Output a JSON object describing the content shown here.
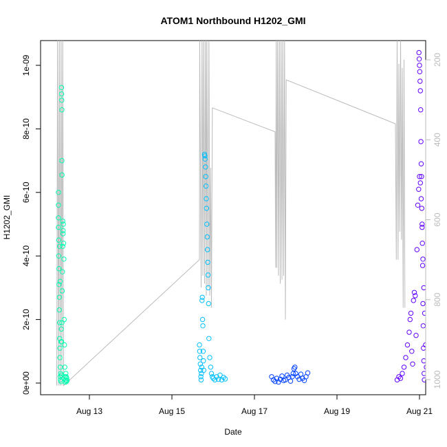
{
  "chart_data": {
    "type": "scatter",
    "title": "ATOM1 Northbound H1202_GMI",
    "xlabel": "Date",
    "ylabel": "H1202_GMI",
    "x_ticks": [
      "Aug 13",
      "Aug 15",
      "Aug 17",
      "Aug 19",
      "Aug 21"
    ],
    "y_ticks": [
      "0e+00",
      "2e-10",
      "4e-10",
      "6e-10",
      "8e-10",
      "1e-09"
    ],
    "y2_ticks": [
      "200",
      "400",
      "600",
      "800",
      "1000"
    ],
    "y2_reversed": true,
    "grid": false,
    "colors": {
      "flight1": "#00ffb0",
      "flight2": "#00bfff",
      "flight3": "#0040ff",
      "flight4": "#6000ff",
      "pressure_line": "#bbbbbb"
    },
    "series": [
      {
        "marker": "open-circle",
        "points": [
          [
            "Aug 12 06:00",
            6e-10
          ],
          [
            "Aug 12 06:00",
            5.6e-10
          ],
          [
            "Aug 12 06:00",
            5.2e-10
          ],
          [
            "Aug 12 06:00",
            4.9e-10
          ],
          [
            "Aug 12 06:10",
            4.5e-10
          ],
          [
            "Aug 12 06:10",
            4e-10
          ],
          [
            "Aug 12 06:20",
            3.6e-10
          ],
          [
            "Aug 12 06:20",
            3.1e-10
          ],
          [
            "Aug 12 06:30",
            2.7e-10
          ],
          [
            "Aug 12 06:30",
            2.3e-10
          ],
          [
            "Aug 12 06:40",
            1.9e-10
          ],
          [
            "Aug 12 06:40",
            1.4e-10
          ],
          [
            "Aug 12 06:50",
            1.1e-10
          ],
          [
            "Aug 12 06:50",
            8e-11
          ],
          [
            "Aug 12 07:00",
            5e-11
          ],
          [
            "Aug 12 07:00",
            2e-11
          ],
          [
            "Aug 12 07:10",
            1e-11
          ],
          [
            "Aug 12 07:20",
            3e-11
          ],
          [
            "Aug 12 07:30",
            5e-12
          ],
          [
            "Aug 12 07:40",
            2.5e-11
          ],
          [
            "Aug 12 07:50",
            1.3e-10
          ],
          [
            "Aug 12 08:00",
            1.9e-10
          ],
          [
            "Aug 12 08:10",
            2.9e-10
          ],
          [
            "Aug 12 08:20",
            3.5e-10
          ],
          [
            "Aug 12 08:30",
            4.3e-10
          ],
          [
            "Aug 12 08:40",
            4.7e-10
          ],
          [
            "Aug 12 08:50",
            5e-10
          ],
          [
            "Aug 12 09:00",
            4.4e-10
          ],
          [
            "Aug 12 09:10",
            3.9e-10
          ],
          [
            "Aug 12 09:20",
            2e-10
          ],
          [
            "Aug 12 09:30",
            1.2e-10
          ],
          [
            "Aug 12 09:40",
            5e-11
          ],
          [
            "Aug 12 09:50",
            2e-11
          ],
          [
            "Aug 12 10:00",
            3e-12
          ],
          [
            "Aug 12 10:10",
            1e-11
          ],
          [
            "Aug 12 10:20",
            3e-11
          ],
          [
            "Aug 12 10:30",
            2e-11
          ],
          [
            "Aug 12 10:40",
            5e-12
          ],
          [
            "Aug 12 10:50",
            1.5e-11
          ],
          [
            "Aug 12 11:00",
            8e-12
          ],
          [
            "Aug 12 06:40",
            4.3e-10
          ],
          [
            "Aug 12 07:00",
            3.2e-10
          ],
          [
            "Aug 12 07:30",
            1.3e-10
          ],
          [
            "Aug 12 07:40",
            1.7e-10
          ],
          [
            "Aug 12 07:45",
            9.3e-10
          ],
          [
            "Aug 12 07:50",
            9.1e-10
          ],
          [
            "Aug 12 07:55",
            8.9e-10
          ],
          [
            "Aug 12 08:00",
            8.6e-10
          ],
          [
            "Aug 12 08:00",
            7e-10
          ],
          [
            "Aug 12 08:05",
            6.55e-10
          ],
          [
            "Aug 12 08:30",
            5.1e-10
          ],
          [
            "Aug 12 08:40",
            4.8e-10
          ]
        ]
      },
      {
        "marker": "open-circle",
        "points": [
          [
            "Aug 15 16:00",
            1.2e-10
          ],
          [
            "Aug 15 16:10",
            1e-10
          ],
          [
            "Aug 15 16:20",
            8e-11
          ],
          [
            "Aug 15 16:30",
            6e-11
          ],
          [
            "Aug 15 16:40",
            4e-11
          ],
          [
            "Aug 15 16:50",
            2e-11
          ],
          [
            "Aug 15 17:00",
            1e-11
          ],
          [
            "Aug 15 17:10",
            3e-11
          ],
          [
            "Aug 15 17:20",
            5e-11
          ],
          [
            "Aug 15 17:30",
            2.6e-10
          ],
          [
            "Aug 15 17:40",
            2.7e-10
          ],
          [
            "Aug 15 17:50",
            2e-10
          ],
          [
            "Aug 15 18:00",
            1.8e-10
          ],
          [
            "Aug 15 18:10",
            1e-10
          ],
          [
            "Aug 15 18:20",
            7e-11
          ],
          [
            "Aug 15 18:30",
            4e-11
          ],
          [
            "Aug 15 19:00",
            7.2e-10
          ],
          [
            "Aug 15 19:10",
            7.15e-10
          ],
          [
            "Aug 15 19:20",
            7.05e-10
          ],
          [
            "Aug 15 19:30",
            6.8e-10
          ],
          [
            "Aug 15 19:40",
            6.5e-10
          ],
          [
            "Aug 15 19:50",
            6.2e-10
          ],
          [
            "Aug 15 20:00",
            5.8e-10
          ],
          [
            "Aug 15 20:10",
            5.5e-10
          ],
          [
            "Aug 15 20:20",
            5e-10
          ],
          [
            "Aug 15 20:30",
            4.6e-10
          ],
          [
            "Aug 15 20:40",
            4.2e-10
          ],
          [
            "Aug 15 20:50",
            3.8e-10
          ],
          [
            "Aug 15 21:00",
            3.4e-10
          ],
          [
            "Aug 15 21:10",
            3e-10
          ],
          [
            "Aug 15 21:20",
            2.5e-10
          ],
          [
            "Aug 15 21:30",
            1.4e-10
          ],
          [
            "Aug 15 22:00",
            8e-11
          ],
          [
            "Aug 15 22:30",
            5e-11
          ],
          [
            "Aug 15 23:00",
            3e-11
          ],
          [
            "Aug 15 23:30",
            2e-11
          ],
          [
            "Aug 16 00:00",
            1.5e-11
          ],
          [
            "Aug 16 01:00",
            1e-11
          ],
          [
            "Aug 16 02:00",
            2e-11
          ],
          [
            "Aug 16 03:00",
            1.2e-11
          ],
          [
            "Aug 16 04:00",
            2.5e-11
          ],
          [
            "Aug 16 05:00",
            1e-11
          ],
          [
            "Aug 16 06:00",
            1.8e-11
          ],
          [
            "Aug 16 07:00",
            1.3e-11
          ]
        ]
      },
      {
        "marker": "open-circle",
        "points": [
          [
            "Aug 17 10:00",
            2e-11
          ],
          [
            "Aug 17 11:00",
            1e-11
          ],
          [
            "Aug 17 12:00",
            5e-12
          ],
          [
            "Aug 17 13:00",
            1.5e-11
          ],
          [
            "Aug 17 14:00",
            3e-12
          ],
          [
            "Aug 17 15:00",
            1.2e-11
          ],
          [
            "Aug 17 16:00",
            2.2e-11
          ],
          [
            "Aug 17 17:00",
            8e-12
          ],
          [
            "Aug 17 18:00",
            1e-11
          ],
          [
            "Aug 17 19:00",
            2.5e-11
          ],
          [
            "Aug 17 20:00",
            1.8e-11
          ],
          [
            "Aug 17 21:00",
            6e-12
          ],
          [
            "Aug 17 22:00",
            2e-11
          ],
          [
            "Aug 17 22:30",
            3e-11
          ],
          [
            "Aug 17 23:00",
            4.5e-11
          ],
          [
            "Aug 17 23:30",
            5e-11
          ],
          [
            "Aug 18 00:00",
            3e-11
          ],
          [
            "Aug 18 01:00",
            2e-11
          ],
          [
            "Aug 18 02:00",
            1.2e-11
          ],
          [
            "Aug 18 03:00",
            2.8e-11
          ],
          [
            "Aug 18 04:00",
            1.5e-11
          ],
          [
            "Aug 18 05:00",
            8e-12
          ],
          [
            "Aug 18 06:00",
            2e-11
          ],
          [
            "Aug 18 07:00",
            3.2e-11
          ]
        ]
      },
      {
        "marker": "open-circle",
        "points": [
          [
            "Aug 20 11:00",
            1e-11
          ],
          [
            "Aug 20 12:00",
            2e-11
          ],
          [
            "Aug 20 13:00",
            1.5e-11
          ],
          [
            "Aug 20 14:00",
            3e-11
          ],
          [
            "Aug 20 15:00",
            5e-11
          ],
          [
            "Aug 20 16:00",
            8e-11
          ],
          [
            "Aug 20 17:00",
            1.2e-10
          ],
          [
            "Aug 20 18:00",
            1.6e-10
          ],
          [
            "Aug 20 18:30",
            2e-10
          ],
          [
            "Aug 20 19:00",
            2.2e-10
          ],
          [
            "Aug 20 19:30",
            1e-10
          ],
          [
            "Aug 20 20:00",
            6e-11
          ],
          [
            "Aug 20 20:30",
            2.6e-10
          ],
          [
            "Aug 20 21:00",
            2.85e-10
          ],
          [
            "Aug 20 21:30",
            2.75e-10
          ],
          [
            "Aug 20 22:00",
            1.5e-10
          ],
          [
            "Aug 20 22:30",
            4.2e-10
          ],
          [
            "Aug 20 23:00",
            5.6e-10
          ],
          [
            "Aug 20 23:30",
            6.1e-10
          ],
          [
            "Aug 21 00:00",
            6.5e-10
          ],
          [
            "Aug 21 00:30",
            6.3e-10
          ],
          [
            "Aug 21 01:00",
            5.8e-10
          ],
          [
            "Aug 21 01:30",
            4.9e-10
          ],
          [
            "Aug 21 02:00",
            3.9e-10
          ],
          [
            "Aug 21 02:30",
            3e-10
          ],
          [
            "Aug 21 03:00",
            2.2e-10
          ],
          [
            "Aug 21 03:30",
            1.2e-10
          ],
          [
            "Aug 21 04:00",
            5e-11
          ],
          [
            "Aug 20 23:40",
            1.04e-09
          ],
          [
            "Aug 20 23:50",
            1.02e-09
          ],
          [
            "Aug 21 00:00",
            1e-09
          ],
          [
            "Aug 21 00:10",
            9.8e-10
          ],
          [
            "Aug 21 00:20",
            9.5e-10
          ],
          [
            "Aug 21 00:30",
            9.2e-10
          ],
          [
            "Aug 21 00:40",
            8.6e-10
          ],
          [
            "Aug 21 00:50",
            7.6e-10
          ],
          [
            "Aug 21 01:00",
            6.9e-10
          ],
          [
            "Aug 21 01:10",
            6.5e-10
          ],
          [
            "Aug 21 01:20",
            5.5e-10
          ],
          [
            "Aug 21 01:30",
            5e-10
          ],
          [
            "Aug 21 01:40",
            4.4e-10
          ],
          [
            "Aug 21 01:50",
            3.7e-10
          ],
          [
            "Aug 21 02:00",
            2.5e-10
          ],
          [
            "Aug 21 02:10",
            1.8e-10
          ],
          [
            "Aug 21 02:20",
            1.1e-10
          ],
          [
            "Aug 21 02:30",
            7e-11
          ],
          [
            "Aug 21 02:40",
            3e-11
          ],
          [
            "Aug 21 02:50",
            1e-11
          ]
        ]
      }
    ],
    "pressure_path": [
      [
        "Aug 12 05:00",
        1015
      ],
      [
        "Aug 12 05:30",
        130
      ],
      [
        "Aug 12 06:00",
        1015
      ],
      [
        "Aug 12 06:30",
        130
      ],
      [
        "Aug 12 07:00",
        1015
      ],
      [
        "Aug 12 07:30",
        130
      ],
      [
        "Aug 12 08:00",
        1015
      ],
      [
        "Aug 12 08:30",
        130
      ],
      [
        "Aug 12 09:00",
        1015
      ],
      [
        "Aug 15 16:00",
        700
      ],
      [
        "Aug 15 16:10",
        130
      ],
      [
        "Aug 15 17:00",
        770
      ],
      [
        "Aug 15 17:30",
        130
      ],
      [
        "Aug 15 18:00",
        740
      ],
      [
        "Aug 15 18:30",
        130
      ],
      [
        "Aug 15 19:00",
        760
      ],
      [
        "Aug 15 19:30",
        130
      ],
      [
        "Aug 15 20:00",
        790
      ],
      [
        "Aug 15 20:20",
        130
      ],
      [
        "Aug 15 21:00",
        770
      ],
      [
        "Aug 15 21:30",
        130
      ],
      [
        "Aug 15 22:00",
        790
      ],
      [
        "Aug 15 22:30",
        470
      ],
      [
        "Aug 15 23:00",
        820
      ],
      [
        "Aug 15 23:30",
        320
      ],
      [
        "Aug 17 12:00",
        380
      ],
      [
        "Aug 17 12:20",
        720
      ],
      [
        "Aug 17 12:40",
        130
      ],
      [
        "Aug 17 13:00",
        720
      ],
      [
        "Aug 17 13:30",
        130
      ],
      [
        "Aug 17 14:00",
        740
      ],
      [
        "Aug 17 14:30",
        130
      ],
      [
        "Aug 17 15:00",
        760
      ],
      [
        "Aug 17 15:30",
        130
      ],
      [
        "Aug 17 16:00",
        750
      ],
      [
        "Aug 17 16:30",
        130
      ],
      [
        "Aug 17 17:00",
        740
      ],
      [
        "Aug 17 17:30",
        130
      ],
      [
        "Aug 17 18:00",
        850
      ],
      [
        "Aug 17 18:30",
        250
      ],
      [
        "Aug 20 10:00",
        360
      ],
      [
        "Aug 20 10:30",
        700
      ],
      [
        "Aug 20 11:00",
        140
      ],
      [
        "Aug 20 11:30",
        700
      ],
      [
        "Aug 20 12:00",
        210
      ],
      [
        "Aug 20 12:30",
        630
      ],
      [
        "Aug 20 13:00",
        140
      ],
      [
        "Aug 20 13:30",
        650
      ],
      [
        "Aug 20 14:00",
        220
      ],
      [
        "Aug 20 14:30",
        820
      ],
      [
        "Aug 20 15:00",
        200
      ],
      [
        "Aug 20 15:30",
        820
      ]
    ]
  }
}
